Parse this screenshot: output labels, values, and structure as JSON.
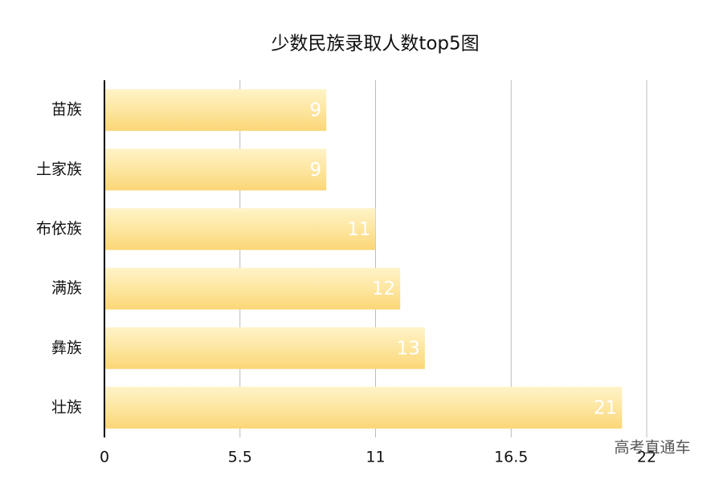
{
  "chart_data": {
    "type": "bar",
    "orientation": "horizontal",
    "title": "少数民族录取人数top5图",
    "categories": [
      "苗族",
      "土家族",
      "布依族",
      "满族",
      "彝族",
      "壮族"
    ],
    "values": [
      9,
      9,
      11,
      12,
      13,
      21
    ],
    "color": "#fbd677",
    "xlim": [
      0,
      22
    ],
    "xticks": [
      0,
      5.5,
      11,
      16.5,
      22
    ],
    "grid": true
  },
  "watermark": "高考直通车"
}
